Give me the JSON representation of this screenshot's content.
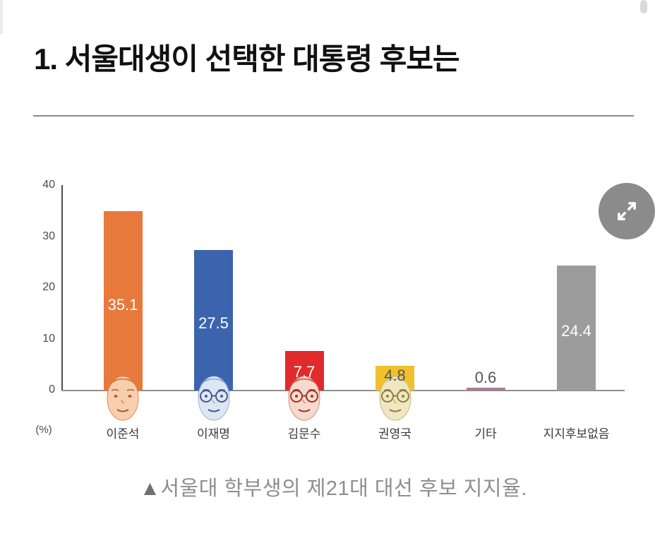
{
  "header": {
    "title": "1. 서울대생이 선택한 대통령 후보는"
  },
  "chart_data": {
    "type": "bar",
    "title": "서울대생이 선택한 대통령 후보는",
    "categories": [
      "이준석",
      "이재명",
      "김문수",
      "권영국",
      "기타",
      "지지후보없음"
    ],
    "values": [
      35.1,
      27.5,
      7.7,
      4.8,
      0.6,
      24.4
    ],
    "value_labels": [
      "35.1",
      "27.5",
      "7.7",
      "4.8",
      "0.6",
      "24.4"
    ],
    "unit_label": "(%)",
    "xlabel": "",
    "ylabel": "",
    "ylim": [
      0,
      40
    ],
    "yticks": [
      "0",
      "10",
      "20",
      "30",
      "40"
    ],
    "grid": false,
    "legend": "none",
    "bar_colors": [
      "#e8793c",
      "#3c63ae",
      "#e12a2b",
      "#f1c12c",
      "#a77d95",
      "#9c9c9c"
    ],
    "value_label_colors": [
      "#ffffff",
      "#ffffff",
      "#ffffff",
      "#555555",
      "#555555",
      "#ffffff"
    ],
    "value_label_inside": [
      true,
      true,
      true,
      true,
      false,
      true
    ],
    "portraits": [
      {
        "present": true,
        "glasses": false,
        "skin": "#f7cfae",
        "line": "#dd8a52",
        "hair": "#dd6f33",
        "feature": "#b35a24"
      },
      {
        "present": true,
        "glasses": true,
        "skin": "#dde6f3",
        "line": "#9db1d6",
        "hair": "#8fa6cf",
        "feature": "#46598c"
      },
      {
        "present": true,
        "glasses": true,
        "skin": "#f7d9cd",
        "line": "#dd8a7a",
        "hair": "#cf5345",
        "feature": "#9c352a"
      },
      {
        "present": true,
        "glasses": true,
        "skin": "#efe6c4",
        "line": "#c9b878",
        "hair": "#ddcb84",
        "feature": "#8f7f3a"
      },
      {
        "present": false
      },
      {
        "present": false
      }
    ]
  },
  "controls": {
    "expand_button": {
      "icon": "expand-arrows",
      "background": "#8b8b8b"
    }
  },
  "caption": {
    "marker": "▲",
    "text": "서울대 학부생의 제21대 대선 후보 지지율."
  }
}
